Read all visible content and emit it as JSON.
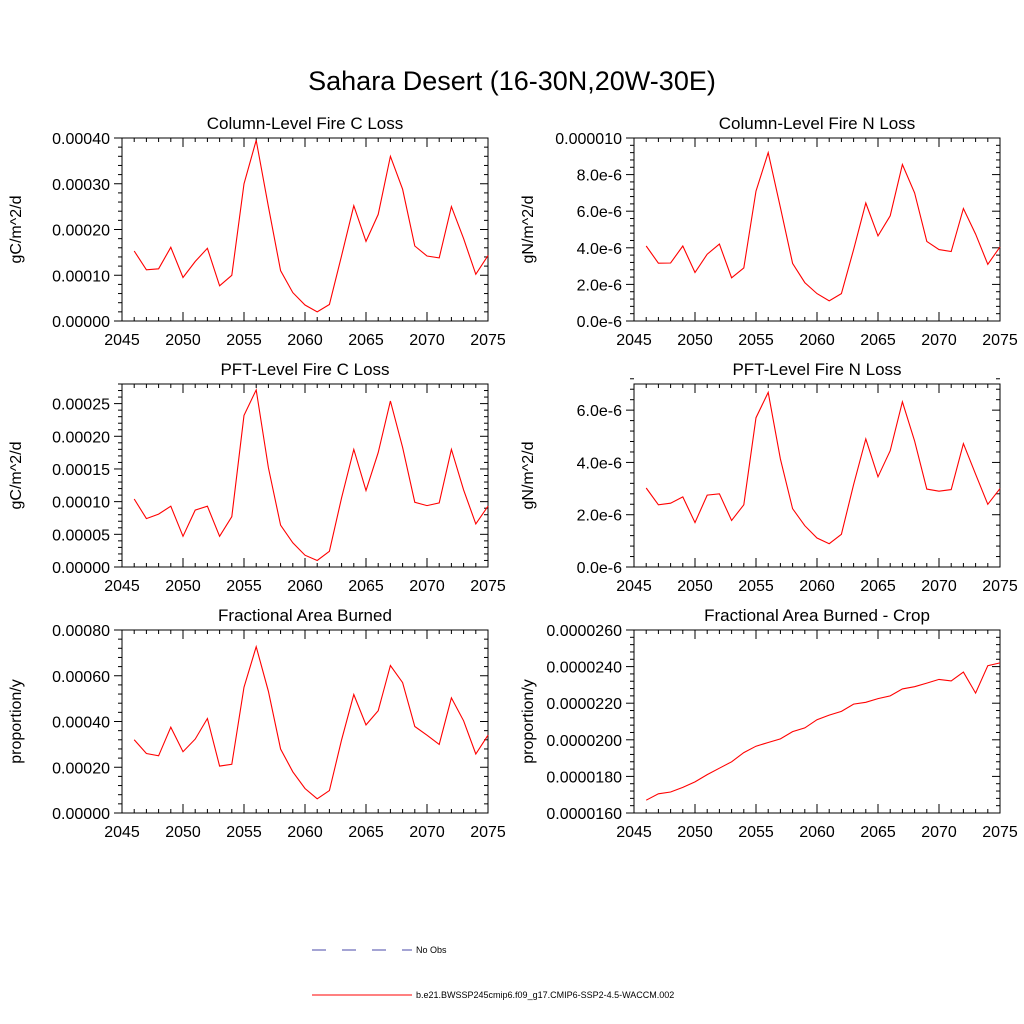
{
  "figure": {
    "title": "Sahara Desert (16-30N,20W-30E)"
  },
  "legend": {
    "entries": [
      {
        "label": "No Obs",
        "color": "#4a4aa8",
        "style": "dashed"
      },
      {
        "label": "b.e21.BWSSP245cmip6.f09_g17.CMIP6-SSP2-4.5-WACCM.002",
        "color": "#ff0000",
        "style": "solid"
      }
    ]
  },
  "chart_data": [
    {
      "type": "line",
      "title": "Column-Level Fire C Loss",
      "xlabel": "",
      "ylabel": "gC/m^2/d",
      "xlim": [
        2045,
        2075
      ],
      "ylim": [
        0,
        0.0004
      ],
      "xticks": [
        2045,
        2050,
        2055,
        2060,
        2065,
        2070,
        2075
      ],
      "yticks": [
        0,
        0.0001,
        0.0002,
        0.0003,
        0.0004
      ],
      "ytick_labels": [
        "0.00000",
        "0.00010",
        "0.00020",
        "0.00030",
        "0.00040"
      ],
      "grid": false,
      "series": [
        {
          "color": "#ff0000",
          "x": [
            2046,
            2047,
            2048,
            2049,
            2050,
            2051,
            2052,
            2053,
            2054,
            2055,
            2056,
            2057,
            2058,
            2059,
            2060,
            2061,
            2062,
            2063,
            2064,
            2065,
            2066,
            2067,
            2068,
            2069,
            2070,
            2071,
            2072,
            2073,
            2074,
            2075
          ],
          "y": [
            0.000153,
            0.000112,
            0.000114,
            0.000161,
            9.5e-05,
            0.00013,
            0.000159,
            7.7e-05,
            0.0001,
            0.0003,
            0.000395,
            0.00025,
            0.00011,
            6.2e-05,
            3.5e-05,
            2e-05,
            3.6e-05,
            0.000143,
            0.000252,
            0.000174,
            0.000233,
            0.00036,
            0.000288,
            0.000164,
            0.000142,
            0.000138,
            0.00025,
            0.00018,
            0.000102,
            0.000143
          ]
        }
      ]
    },
    {
      "type": "line",
      "title": "Column-Level Fire N Loss",
      "xlabel": "",
      "ylabel": "gN/m^2/d",
      "xlim": [
        2045,
        2075
      ],
      "ylim": [
        0,
        1e-05
      ],
      "xticks": [
        2045,
        2050,
        2055,
        2060,
        2065,
        2070,
        2075
      ],
      "yticks": [
        0,
        2e-06,
        4e-06,
        6e-06,
        8e-06,
        1e-05
      ],
      "ytick_labels": [
        "0.0e-6",
        "2.0e-6",
        "4.0e-6",
        "6.0e-6",
        "8.0e-6",
        "0.000010"
      ],
      "grid": false,
      "series": [
        {
          "color": "#ff0000",
          "x": [
            2046,
            2047,
            2048,
            2049,
            2050,
            2051,
            2052,
            2053,
            2054,
            2055,
            2056,
            2057,
            2058,
            2059,
            2060,
            2061,
            2062,
            2063,
            2064,
            2065,
            2066,
            2067,
            2068,
            2069,
            2070,
            2071,
            2072,
            2073,
            2074,
            2075
          ],
          "y": [
            4.1e-06,
            3.16e-06,
            3.17e-06,
            4.1e-06,
            2.65e-06,
            3.65e-06,
            4.2e-06,
            2.36e-06,
            2.9e-06,
            7.1e-06,
            9.2e-06,
            6.2e-06,
            3.15e-06,
            2.1e-06,
            1.5e-06,
            1.1e-06,
            1.5e-06,
            3.9e-06,
            6.45e-06,
            4.65e-06,
            5.75e-06,
            8.55e-06,
            7e-06,
            4.35e-06,
            3.9e-06,
            3.8e-06,
            6.15e-06,
            4.75e-06,
            3.1e-06,
            4.05e-06
          ]
        }
      ]
    },
    {
      "type": "line",
      "title": "PFT-Level Fire C Loss",
      "xlabel": "",
      "ylabel": "gC/m^2/d",
      "xlim": [
        2045,
        2075
      ],
      "ylim": [
        0,
        0.00028
      ],
      "xticks": [
        2045,
        2050,
        2055,
        2060,
        2065,
        2070,
        2075
      ],
      "yticks": [
        0,
        5e-05,
        0.0001,
        0.00015,
        0.0002,
        0.00025
      ],
      "ytick_labels": [
        "0.00000",
        "0.00005",
        "0.00010",
        "0.00015",
        "0.00020",
        "0.00025"
      ],
      "grid": false,
      "series": [
        {
          "color": "#ff0000",
          "x": [
            2046,
            2047,
            2048,
            2049,
            2050,
            2051,
            2052,
            2053,
            2054,
            2055,
            2056,
            2057,
            2058,
            2059,
            2060,
            2061,
            2062,
            2063,
            2064,
            2065,
            2066,
            2067,
            2068,
            2069,
            2070,
            2071,
            2072,
            2073,
            2074,
            2075
          ],
          "y": [
            0.000104,
            7.4e-05,
            8.1e-05,
            9.3e-05,
            4.7e-05,
            8.7e-05,
            9.3e-05,
            4.7e-05,
            7.7e-05,
            0.000232,
            0.000271,
            0.000152,
            6.4e-05,
            3.7e-05,
            1.8e-05,
            1e-05,
            2.4e-05,
            0.000106,
            0.00018,
            0.000117,
            0.000175,
            0.000254,
            0.000183,
            9.9e-05,
            9.4e-05,
            9.8e-05,
            0.00018,
            0.000118,
            6.6e-05,
            9.3e-05
          ]
        }
      ]
    },
    {
      "type": "line",
      "title": "PFT-Level Fire N Loss",
      "xlabel": "",
      "ylabel": "gN/m^2/d",
      "xlim": [
        2045,
        2075
      ],
      "ylim": [
        0,
        7e-06
      ],
      "xticks": [
        2045,
        2050,
        2055,
        2060,
        2065,
        2070,
        2075
      ],
      "yticks": [
        0,
        2e-06,
        4e-06,
        6e-06
      ],
      "ytick_labels": [
        "0.0e-6",
        "2.0e-6",
        "4.0e-6",
        "6.0e-6"
      ],
      "grid": false,
      "series": [
        {
          "color": "#ff0000",
          "x": [
            2046,
            2047,
            2048,
            2049,
            2050,
            2051,
            2052,
            2053,
            2054,
            2055,
            2056,
            2057,
            2058,
            2059,
            2060,
            2061,
            2062,
            2063,
            2064,
            2065,
            2066,
            2067,
            2068,
            2069,
            2070,
            2071,
            2072,
            2073,
            2074,
            2075
          ],
          "y": [
            3.02e-06,
            2.38e-06,
            2.44e-06,
            2.68e-06,
            1.7e-06,
            2.75e-06,
            2.8e-06,
            1.78e-06,
            2.38e-06,
            5.71e-06,
            6.68e-06,
            4.13e-06,
            2.23e-06,
            1.58e-06,
            1.11e-06,
            8.9e-07,
            1.25e-06,
            3.15e-06,
            4.9e-06,
            3.45e-06,
            4.45e-06,
            6.32e-06,
            4.82e-06,
            2.98e-06,
            2.9e-06,
            2.96e-06,
            4.72e-06,
            3.55e-06,
            2.4e-06,
            3e-06
          ]
        }
      ]
    },
    {
      "type": "line",
      "title": "Fractional Area Burned",
      "xlabel": "",
      "ylabel": "proportion/y",
      "xlim": [
        2045,
        2075
      ],
      "ylim": [
        0,
        0.0008
      ],
      "xticks": [
        2045,
        2050,
        2055,
        2060,
        2065,
        2070,
        2075
      ],
      "yticks": [
        0,
        0.0002,
        0.0004,
        0.0006,
        0.0008
      ],
      "ytick_labels": [
        "0.00000",
        "0.00020",
        "0.00040",
        "0.00060",
        "0.00080"
      ],
      "grid": false,
      "series": [
        {
          "color": "#ff0000",
          "x": [
            2046,
            2047,
            2048,
            2049,
            2050,
            2051,
            2052,
            2053,
            2054,
            2055,
            2056,
            2057,
            2058,
            2059,
            2060,
            2061,
            2062,
            2063,
            2064,
            2065,
            2066,
            2067,
            2068,
            2069,
            2070,
            2071,
            2072,
            2073,
            2074,
            2075
          ],
          "y": [
            0.00032,
            0.00026,
            0.00025,
            0.000375,
            0.000268,
            0.000323,
            0.000413,
            0.000205,
            0.000213,
            0.00055,
            0.000727,
            0.000532,
            0.00028,
            0.00018,
            0.000107,
            6.2e-05,
            9.8e-05,
            0.00032,
            0.000518,
            0.000385,
            0.000447,
            0.000645,
            0.00057,
            0.000378,
            0.00034,
            0.0003,
            0.000503,
            0.000403,
            0.000258,
            0.00034
          ]
        }
      ]
    },
    {
      "type": "line",
      "title": "Fractional Area Burned - Crop",
      "xlabel": "",
      "ylabel": "proportion/y",
      "xlim": [
        2045,
        2075
      ],
      "ylim": [
        1.6e-05,
        2.6e-05
      ],
      "xticks": [
        2045,
        2050,
        2055,
        2060,
        2065,
        2070,
        2075
      ],
      "yticks": [
        1.6e-05,
        1.8e-05,
        2e-05,
        2.2e-05,
        2.4e-05,
        2.6e-05
      ],
      "ytick_labels": [
        "0.0000160",
        "0.0000180",
        "0.0000200",
        "0.0000220",
        "0.0000240",
        "0.0000260"
      ],
      "grid": false,
      "series": [
        {
          "color": "#ff0000",
          "x": [
            2046,
            2047,
            2048,
            2049,
            2050,
            2051,
            2052,
            2053,
            2054,
            2055,
            2056,
            2057,
            2058,
            2059,
            2060,
            2061,
            2062,
            2063,
            2064,
            2065,
            2066,
            2067,
            2068,
            2069,
            2070,
            2071,
            2072,
            2073,
            2074,
            2075
          ],
          "y": [
            1.67e-05,
            1.705e-05,
            1.715e-05,
            1.74e-05,
            1.77e-05,
            1.81e-05,
            1.845e-05,
            1.88e-05,
            1.93e-05,
            1.965e-05,
            1.985e-05,
            2.005e-05,
            2.045e-05,
            2.065e-05,
            2.11e-05,
            2.135e-05,
            2.155e-05,
            2.195e-05,
            2.205e-05,
            2.225e-05,
            2.24e-05,
            2.278e-05,
            2.29e-05,
            2.31e-05,
            2.33e-05,
            2.322e-05,
            2.37e-05,
            2.255e-05,
            2.405e-05,
            2.42e-05
          ]
        }
      ]
    }
  ]
}
